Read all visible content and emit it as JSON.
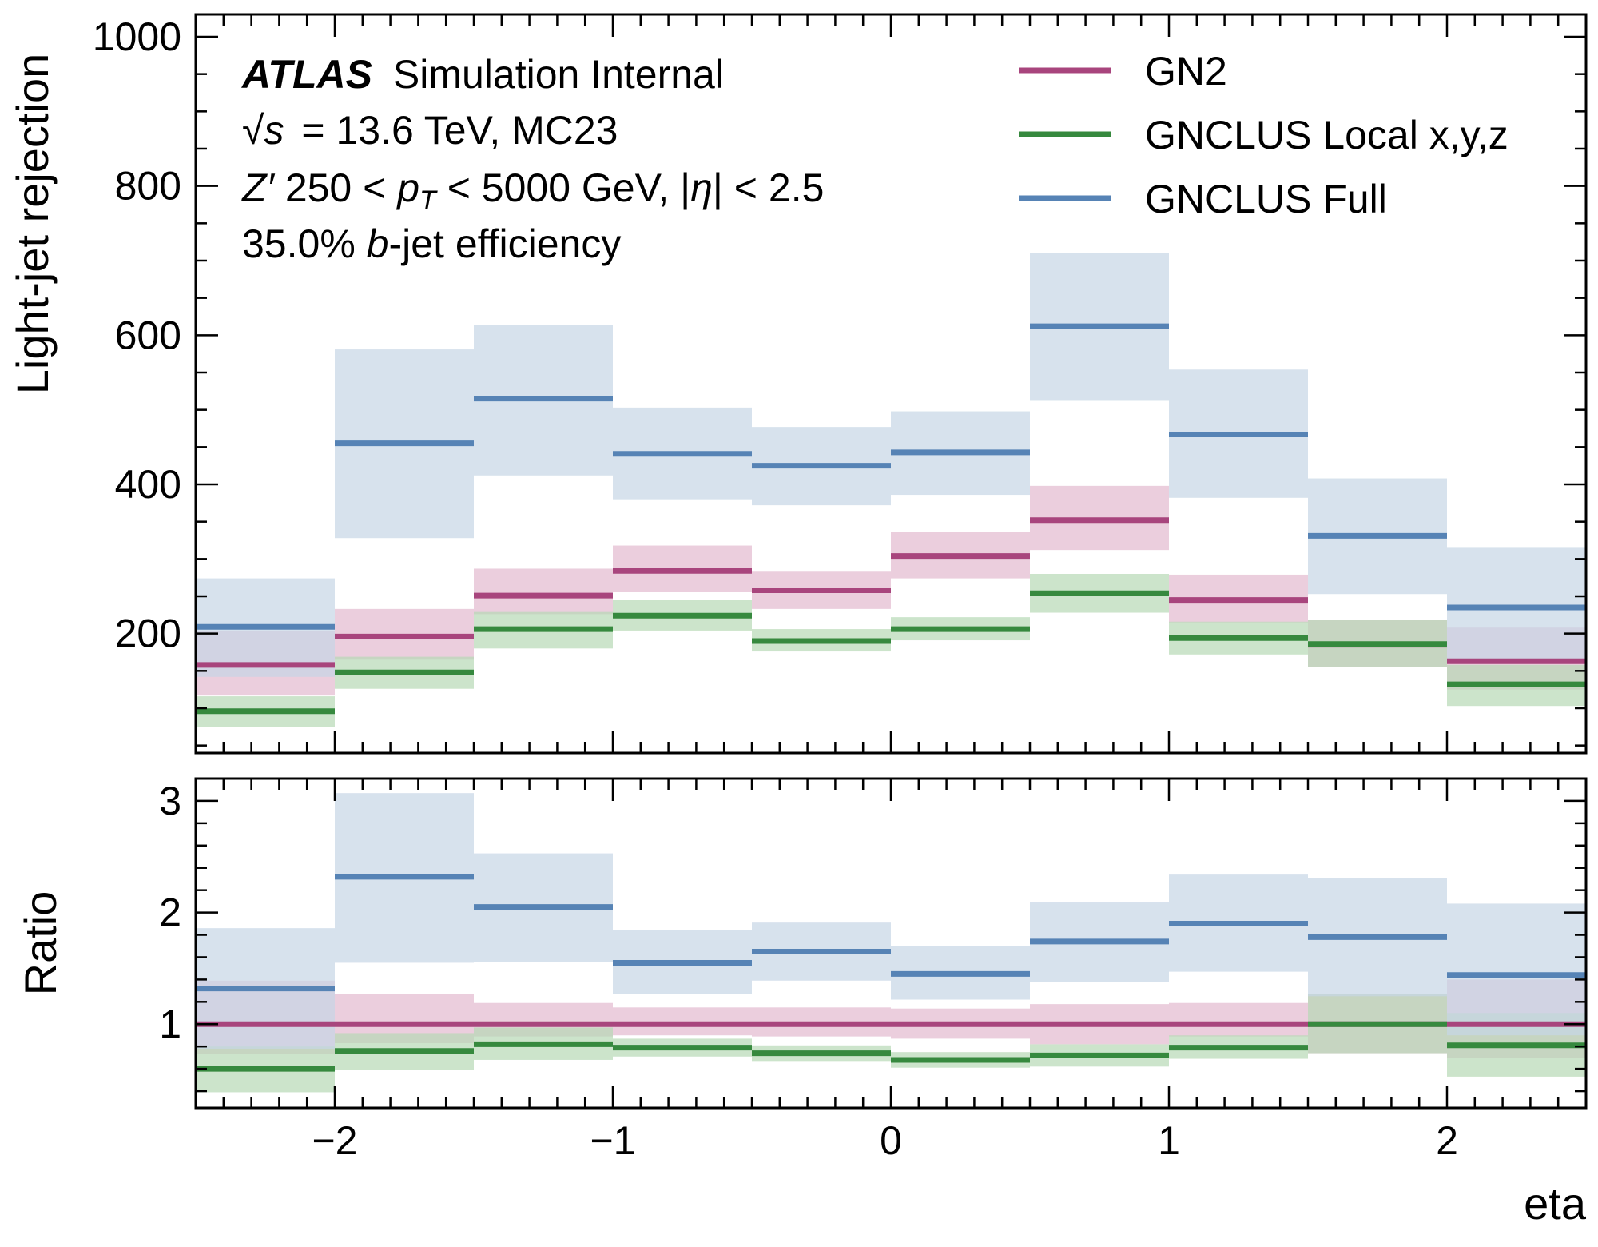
{
  "figure": {
    "atlas_label": "ATLAS",
    "sim_label": "Simulation Internal",
    "energy_sqrt": "√",
    "energy_s": "s",
    "energy_rest": "= 13.6 TeV, MC23",
    "sel_z": "Z′",
    "sel_mid": " 250 < ",
    "sel_p": "p",
    "sel_t": "T",
    "sel_mid2": " < 5000 GeV, |",
    "sel_eta": "η",
    "sel_end": "| < 2.5",
    "eff_pre": "35.0% ",
    "eff_b": "b",
    "eff_post": "-jet efficiency"
  },
  "chart_data": [
    {
      "type": "step",
      "panel": "main",
      "ylabel": "Light-jet rejection",
      "xlim": [
        -2.5,
        2.5
      ],
      "ylim": [
        40,
        1030
      ],
      "yticks": [
        200,
        400,
        600,
        800,
        1000
      ],
      "ytick_labels": [
        "200",
        "400",
        "600",
        "800",
        "1000"
      ],
      "log_scale": false,
      "legend_position": "top-right",
      "bin_edges": [
        -2.5,
        -2.0,
        -1.5,
        -1.0,
        -0.5,
        0.0,
        0.5,
        1.0,
        1.5,
        2.0,
        2.5
      ],
      "series": [
        {
          "name": "GN2",
          "color": "#a8457d",
          "band_color": "#e3b9cf",
          "values": [
            158,
            196,
            251,
            284,
            258,
            304,
            352,
            245,
            185,
            163
          ],
          "lower": [
            117,
            165,
            226,
            256,
            233,
            274,
            312,
            215,
            155,
            125
          ],
          "upper": [
            203,
            233,
            287,
            318,
            284,
            336,
            398,
            279,
            218,
            208
          ]
        },
        {
          "name": "GNCLUS Local x,y,z",
          "color": "#36893e",
          "band_color": "#b7d8b5",
          "values": [
            96,
            148,
            206,
            224,
            190,
            206,
            254,
            194,
            186,
            132
          ],
          "lower": [
            75,
            126,
            180,
            204,
            176,
            191,
            228,
            172,
            155,
            103
          ],
          "upper": [
            116,
            169,
            230,
            245,
            206,
            222,
            280,
            216,
            218,
            158
          ]
        },
        {
          "name": "GNCLUS Full",
          "color": "#5683b5",
          "band_color": "#c6d5e6",
          "values": [
            209,
            455,
            515,
            441,
            425,
            443,
            612,
            467,
            331,
            235
          ],
          "lower": [
            142,
            328,
            412,
            380,
            372,
            386,
            512,
            382,
            253,
            163
          ],
          "upper": [
            274,
            581,
            614,
            503,
            477,
            498,
            710,
            554,
            408,
            316
          ]
        }
      ]
    },
    {
      "type": "step",
      "panel": "ratio",
      "xlabel": "eta",
      "ylabel": "Ratio",
      "xlim": [
        -2.5,
        2.5
      ],
      "ylim": [
        0.25,
        3.2
      ],
      "yticks": [
        1,
        2,
        3
      ],
      "ytick_labels": [
        "1",
        "2",
        "3"
      ],
      "xticks": [
        -2,
        -1,
        0,
        1,
        2
      ],
      "xtick_labels": [
        "−2",
        "−1",
        "0",
        "1",
        "2"
      ],
      "bin_edges": [
        -2.5,
        -2.0,
        -1.5,
        -1.0,
        -0.5,
        0.0,
        0.5,
        1.0,
        1.5,
        2.0,
        2.5
      ],
      "series": [
        {
          "name": "GN2",
          "color": "#a8457d",
          "band_color": "#e3b9cf",
          "values": [
            1.0,
            1.0,
            1.0,
            1.0,
            1.0,
            1.0,
            1.0,
            1.0,
            1.0,
            1.0
          ],
          "lower": [
            0.73,
            0.83,
            0.89,
            0.9,
            0.89,
            0.87,
            0.82,
            0.89,
            0.74,
            0.7
          ],
          "upper": [
            1.39,
            1.27,
            1.19,
            1.15,
            1.15,
            1.14,
            1.18,
            1.19,
            1.27,
            1.4
          ]
        },
        {
          "name": "GNCLUS Local x,y,z",
          "color": "#36893e",
          "band_color": "#b7d8b5",
          "values": [
            0.6,
            0.76,
            0.82,
            0.79,
            0.74,
            0.68,
            0.72,
            0.79,
            1.0,
            0.81
          ],
          "lower": [
            0.39,
            0.59,
            0.68,
            0.71,
            0.67,
            0.61,
            0.62,
            0.69,
            0.74,
            0.53
          ],
          "upper": [
            0.8,
            0.92,
            0.97,
            0.87,
            0.81,
            0.75,
            0.82,
            0.9,
            1.27,
            1.1
          ]
        },
        {
          "name": "GNCLUS Full",
          "color": "#5683b5",
          "band_color": "#c6d5e6",
          "values": [
            1.32,
            2.32,
            2.05,
            1.55,
            1.65,
            1.45,
            1.74,
            1.9,
            1.78,
            1.44
          ],
          "lower": [
            0.78,
            1.55,
            1.56,
            1.27,
            1.39,
            1.22,
            1.38,
            1.47,
            1.25,
            0.9
          ],
          "upper": [
            1.86,
            3.07,
            2.53,
            1.84,
            1.91,
            1.7,
            2.09,
            2.34,
            2.31,
            2.08
          ]
        }
      ]
    }
  ]
}
